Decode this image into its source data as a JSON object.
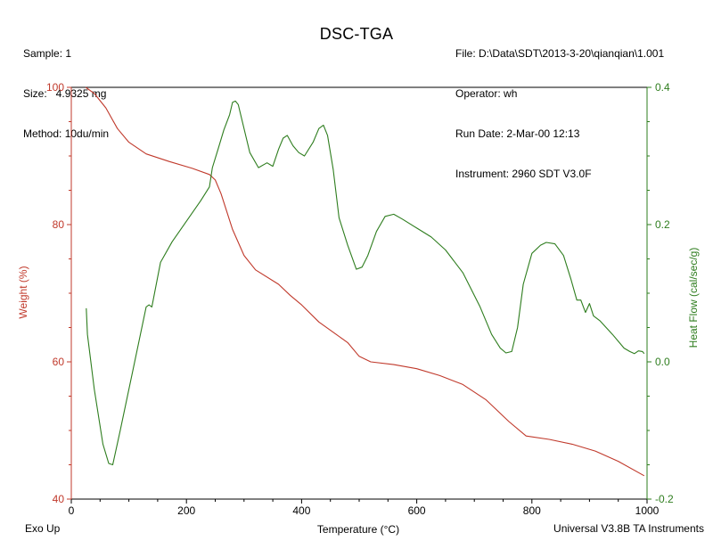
{
  "header": {
    "left": {
      "sample": "Sample: 1",
      "size": "Size:   4.9325 mg",
      "method": "Method: 10du/min"
    },
    "right": {
      "file": "File: D:\\Data\\SDT\\2013-3-20\\qianqian\\1.001",
      "operator": "Operator: wh",
      "run_date": "Run Date: 2-Mar-00 12:13",
      "instrument": "Instrument: 2960 SDT V3.0F"
    }
  },
  "footer": {
    "left": "Exo Up",
    "right": "Universal V3.8B TA Instruments"
  },
  "colors": {
    "weight": "#c0392b",
    "heat_flow": "#2e7d1e",
    "axis": "#000000"
  },
  "chart_data": {
    "type": "line",
    "title": "DSC-TGA",
    "xlabel": "Temperature (°C)",
    "ylabel_left": "Weight (%)",
    "ylabel_right": "Heat Flow (cal/sec/g)",
    "xlim": [
      0,
      1000
    ],
    "ylim_left": [
      40,
      100
    ],
    "ylim_right": [
      -0.2,
      0.4
    ],
    "x_ticks": [
      "0",
      "200",
      "400",
      "600",
      "800",
      "1000"
    ],
    "y_ticks_left": [
      "40",
      "60",
      "80",
      "100"
    ],
    "y_ticks_right": [
      "-0.2",
      "0.0",
      "0.2",
      "0.4"
    ],
    "grid": false,
    "series": [
      {
        "name": "Weight",
        "axis": "left",
        "color": "#c0392b",
        "x": [
          25,
          40,
          60,
          80,
          100,
          130,
          170,
          210,
          240,
          250,
          260,
          280,
          300,
          320,
          360,
          380,
          400,
          430,
          460,
          480,
          500,
          520,
          560,
          600,
          640,
          680,
          720,
          760,
          790,
          830,
          870,
          910,
          950,
          995
        ],
        "y": [
          100,
          99.1,
          97,
          94,
          92,
          90.3,
          89.2,
          88.2,
          87.3,
          86.5,
          84.5,
          79.3,
          75.5,
          73.4,
          71.3,
          69.7,
          68.3,
          65.8,
          64.0,
          62.8,
          60.8,
          60.0,
          59.6,
          59.0,
          58.0,
          56.7,
          54.5,
          51.3,
          49.2,
          48.7,
          48.0,
          47.0,
          45.5,
          43.4
        ]
      },
      {
        "name": "Heat Flow",
        "axis": "right",
        "color": "#2e7d1e",
        "x": [
          26,
          28,
          40,
          55,
          65,
          72,
          85,
          110,
          130,
          135,
          140,
          155,
          175,
          200,
          225,
          240,
          245,
          255,
          265,
          275,
          280,
          285,
          290,
          300,
          310,
          325,
          340,
          350,
          360,
          368,
          375,
          385,
          395,
          405,
          420,
          430,
          438,
          445,
          455,
          465,
          480,
          495,
          505,
          515,
          530,
          545,
          560,
          575,
          600,
          625,
          650,
          680,
          710,
          730,
          745,
          755,
          765,
          775,
          785,
          800,
          815,
          825,
          840,
          855,
          868,
          878,
          885,
          893,
          900,
          907,
          918,
          940,
          960,
          970,
          978,
          985,
          992,
          995
        ],
        "y": [
          0.078,
          0.04,
          -0.04,
          -0.12,
          -0.148,
          -0.15,
          -0.1,
          0.0,
          0.08,
          0.083,
          0.08,
          0.145,
          0.175,
          0.205,
          0.235,
          0.255,
          0.283,
          0.31,
          0.338,
          0.36,
          0.378,
          0.38,
          0.375,
          0.34,
          0.305,
          0.283,
          0.29,
          0.285,
          0.31,
          0.326,
          0.33,
          0.315,
          0.305,
          0.3,
          0.32,
          0.34,
          0.345,
          0.33,
          0.28,
          0.21,
          0.17,
          0.135,
          0.138,
          0.155,
          0.19,
          0.212,
          0.215,
          0.208,
          0.195,
          0.182,
          0.163,
          0.13,
          0.08,
          0.04,
          0.02,
          0.013,
          0.015,
          0.05,
          0.113,
          0.158,
          0.17,
          0.174,
          0.172,
          0.155,
          0.12,
          0.09,
          0.09,
          0.072,
          0.085,
          0.067,
          0.06,
          0.04,
          0.02,
          0.015,
          0.012,
          0.016,
          0.015,
          0.012
        ]
      }
    ]
  }
}
